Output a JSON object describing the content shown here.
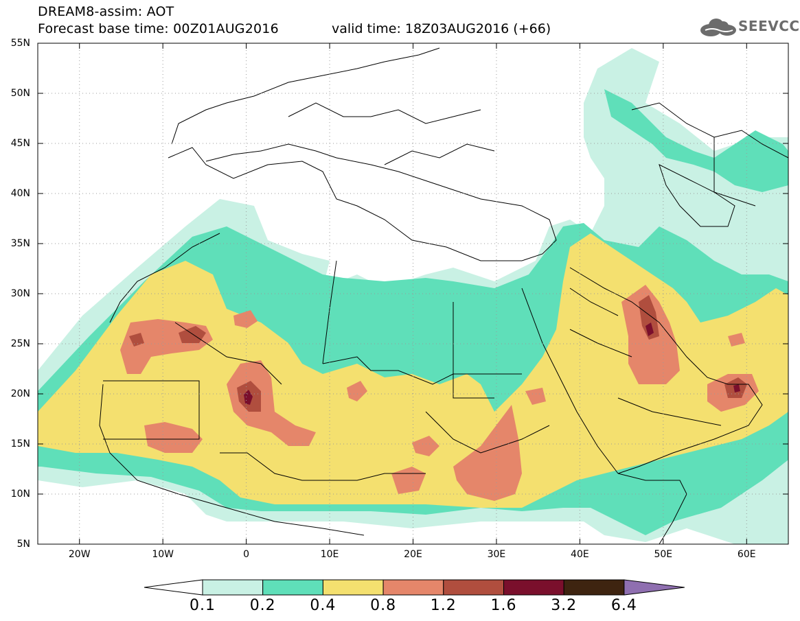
{
  "title": {
    "line1": "DREAM8-assim: AOT",
    "base_time": "Forecast base time: 00Z01AUG2016",
    "valid_time": "valid time: 18Z03AUG2016 (+66)"
  },
  "logo": {
    "text": "SEEVCCC",
    "icon": "cloud-icon"
  },
  "axes": {
    "y_labels": [
      "55N",
      "50N",
      "45N",
      "40N",
      "35N",
      "30N",
      "25N",
      "20N",
      "15N",
      "10N",
      "5N"
    ],
    "x_labels": [
      "20W",
      "10W",
      "0",
      "10E",
      "20E",
      "30E",
      "40E",
      "50E",
      "60E"
    ],
    "lon_range": [
      -25,
      65
    ],
    "lat_range": [
      5,
      55
    ],
    "grid": "dotted"
  },
  "colorbar": {
    "labels": [
      "0.1",
      "0.2",
      "0.4",
      "0.8",
      "1.2",
      "1.6",
      "3.2",
      "6.4"
    ],
    "colors": [
      "#c9f1e4",
      "#5fdfb9",
      "#f4e06f",
      "#e5866a",
      "#b04e3e",
      "#7a0f2c",
      "#3e2410",
      "#8f6fb0"
    ]
  }
}
